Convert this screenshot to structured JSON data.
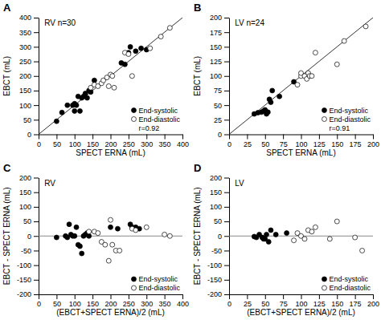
{
  "chart_data": [
    {
      "type": "scatter",
      "title": "RV n=30",
      "x_label": "SPECT ERNA (mL)",
      "y_label": "EBCT (mL)",
      "annotations": [
        "A",
        "r=0.92"
      ],
      "xlim": [
        0,
        400
      ],
      "ylim": [
        0,
        400
      ],
      "xticks": [
        0,
        50,
        100,
        150,
        200,
        250,
        300,
        350,
        400
      ],
      "yticks": [
        0,
        50,
        100,
        150,
        200,
        250,
        300,
        350,
        400
      ],
      "grid": false,
      "legend": "lower right",
      "series": [
        {
          "name": "End-systolic",
          "color": "black",
          "x": [
            50,
            65,
            80,
            95,
            100,
            100,
            105,
            110,
            115,
            120,
            125,
            130,
            135,
            140,
            145,
            155,
            230,
            240,
            250,
            255,
            270,
            285,
            300
          ],
          "values": [
            45,
            75,
            100,
            100,
            80,
            105,
            100,
            130,
            80,
            125,
            130,
            140,
            125,
            150,
            145,
            185,
            245,
            240,
            280,
            300,
            285,
            295,
            290
          ]
        },
        {
          "name": "End-diastolic",
          "color": "white",
          "x": [
            145,
            155,
            165,
            175,
            180,
            190,
            195,
            200,
            205,
            210,
            240,
            250,
            260,
            310,
            340,
            365
          ],
          "values": [
            160,
            170,
            165,
            175,
            185,
            195,
            165,
            205,
            200,
            160,
            280,
            275,
            200,
            295,
            335,
            365
          ]
        }
      ]
    },
    {
      "type": "scatter",
      "title": "LV n=24",
      "x_label": "SPECT ERNA (mL)",
      "y_label": "EBCT (mL)",
      "annotations": [
        "B",
        "r=0.91"
      ],
      "xlim": [
        0,
        200
      ],
      "ylim": [
        0,
        200
      ],
      "xticks": [
        0,
        25,
        50,
        75,
        100,
        125,
        150,
        175,
        200
      ],
      "yticks": [
        0,
        25,
        50,
        75,
        100,
        125,
        150,
        175,
        200
      ],
      "grid": false,
      "legend": "lower right",
      "series": [
        {
          "name": "End-systolic",
          "color": "black",
          "x": [
            35,
            40,
            45,
            48,
            50,
            52,
            54,
            56,
            58,
            60,
            70,
            90
          ],
          "values": [
            35,
            37,
            38,
            40,
            42,
            35,
            38,
            60,
            55,
            75,
            65,
            90
          ]
        },
        {
          "name": "End-diastolic",
          "color": "white",
          "x": [
            95,
            100,
            100,
            105,
            108,
            110,
            112,
            115,
            120,
            150,
            160,
            190
          ],
          "values": [
            85,
            100,
            105,
            100,
            95,
            105,
            100,
            100,
            140,
            120,
            160,
            185
          ]
        }
      ]
    },
    {
      "type": "scatter",
      "title": "RV",
      "x_label": "(EBCT+SPECT ERNA)/2 (mL)",
      "y_label": "EBCT - SPECT ERNA (mL)",
      "annotations": [
        "C"
      ],
      "xlim": [
        0,
        400
      ],
      "ylim": [
        -200,
        200
      ],
      "xticks": [
        0,
        50,
        100,
        150,
        200,
        250,
        300,
        350,
        400
      ],
      "yticks": [
        -200,
        -150,
        -100,
        -50,
        0,
        50,
        100,
        150,
        200
      ],
      "grid": false,
      "legend": "lower right",
      "series": [
        {
          "name": "End-systolic",
          "color": "black",
          "x": [
            50,
            75,
            80,
            85,
            90,
            95,
            100,
            105,
            110,
            115,
            120,
            125,
            130,
            135,
            140,
            200,
            220,
            255,
            260,
            270,
            280
          ],
          "values": [
            -5,
            0,
            -5,
            40,
            5,
            0,
            0,
            30,
            -30,
            -35,
            -60,
            0,
            5,
            10,
            0,
            30,
            25,
            40,
            30,
            30,
            25
          ]
        },
        {
          "name": "End-diastolic",
          "color": "white",
          "x": [
            140,
            155,
            165,
            175,
            185,
            195,
            200,
            205,
            215,
            225,
            260,
            270,
            300,
            350,
            365
          ],
          "values": [
            15,
            15,
            10,
            -20,
            -30,
            -85,
            55,
            -30,
            -50,
            -50,
            25,
            20,
            30,
            5,
            0
          ]
        }
      ]
    },
    {
      "type": "scatter",
      "title": "LV",
      "x_label": "(EBCT+SPECT ERNA)/2 (mL)",
      "y_label": "EBCT - SPECT ERNA (mL)",
      "annotations": [
        "D"
      ],
      "xlim": [
        0,
        200
      ],
      "ylim": [
        -200,
        200
      ],
      "xticks": [
        0,
        25,
        50,
        75,
        100,
        125,
        150,
        175,
        200
      ],
      "yticks": [
        -200,
        -150,
        -100,
        -50,
        0,
        50,
        100,
        150,
        200
      ],
      "grid": false,
      "legend": "lower right",
      "series": [
        {
          "name": "End-systolic",
          "color": "black",
          "x": [
            35,
            38,
            42,
            46,
            48,
            50,
            52,
            55,
            58,
            65,
            80
          ],
          "values": [
            -2,
            -5,
            5,
            -5,
            -10,
            -10,
            5,
            -20,
            20,
            5,
            10
          ]
        },
        {
          "name": "End-diastolic",
          "color": "white",
          "x": [
            90,
            95,
            100,
            105,
            110,
            115,
            120,
            140,
            150,
            175,
            185
          ],
          "values": [
            -15,
            10,
            0,
            -10,
            20,
            15,
            30,
            -10,
            50,
            -5,
            -50
          ]
        }
      ]
    }
  ]
}
